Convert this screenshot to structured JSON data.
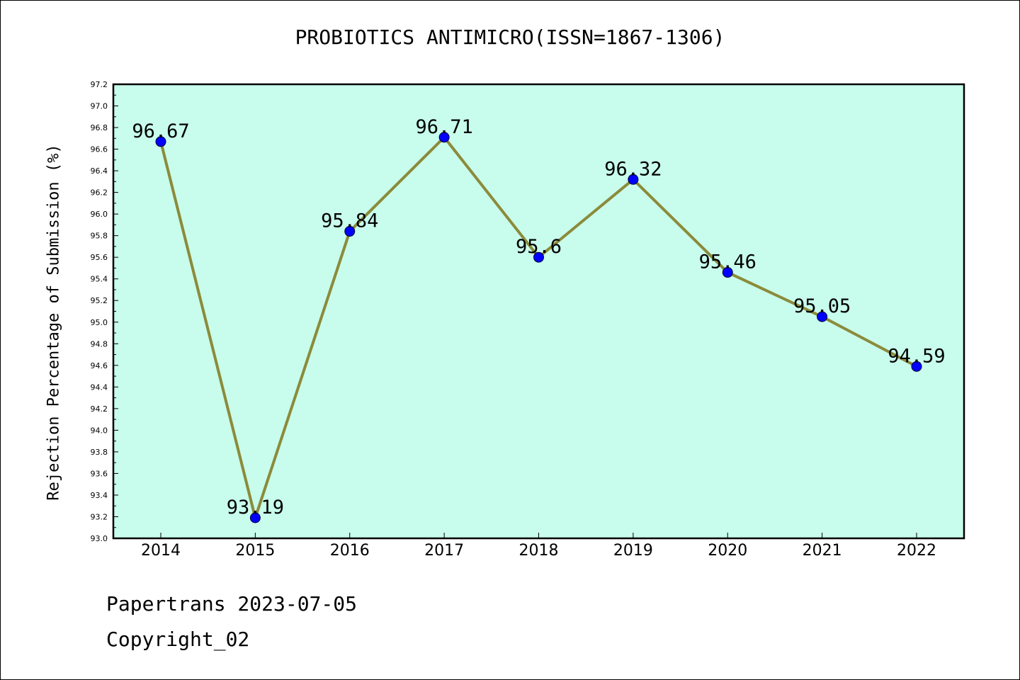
{
  "chart_data": {
    "type": "line",
    "title": "PROBIOTICS ANTIMICRO(ISSN=1867-1306)",
    "xlabel": "",
    "ylabel": "Rejection Percentage of Submission (%)",
    "categories": [
      "2014",
      "2015",
      "2016",
      "2017",
      "2018",
      "2019",
      "2020",
      "2021",
      "2022"
    ],
    "series": [
      {
        "name": "Rejection Percentage",
        "values": [
          96.67,
          93.19,
          95.84,
          96.71,
          95.6,
          96.32,
          95.46,
          95.05,
          94.59
        ],
        "labels": [
          "96.67",
          "93.19",
          "95.84",
          "96.71",
          "95.6",
          "96.32",
          "95.46",
          "95.05",
          "94.59"
        ]
      }
    ],
    "ylim": [
      93.0,
      97.2
    ],
    "yticks": [
      "93.0",
      "93.2",
      "93.4",
      "93.6",
      "93.8",
      "94.0",
      "94.2",
      "94.4",
      "94.6",
      "94.8",
      "95.0",
      "95.2",
      "95.4",
      "95.6",
      "95.8",
      "96.0",
      "96.2",
      "96.4",
      "96.6",
      "96.8",
      "97.0",
      "97.2"
    ],
    "grid": false,
    "colors": {
      "background": "#c8fcec",
      "line": "#8b8b3a",
      "marker": "#0000ff"
    }
  },
  "footer": {
    "stamp": "Papertrans 2023-07-05",
    "copyright": "Copyright_02"
  }
}
